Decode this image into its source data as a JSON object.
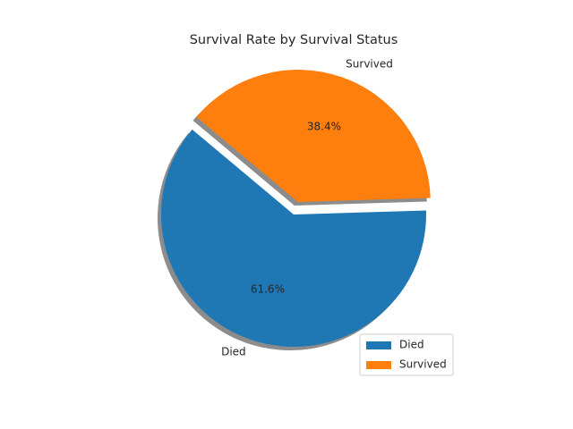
{
  "chart_data": {
    "type": "pie",
    "title": "Survival Rate by Survival Status",
    "categories": [
      "Died",
      "Survived"
    ],
    "values": [
      61.6,
      38.4
    ],
    "percent_labels": [
      "61.6%",
      "38.4%"
    ],
    "colors": [
      "#1f77b4",
      "#ff7f0e"
    ],
    "explode": [
      0,
      0.1
    ],
    "shadow": true,
    "start_angle_deg": 140,
    "legend": {
      "placement": "lower-right",
      "entries": [
        "Died",
        "Survived"
      ]
    }
  }
}
